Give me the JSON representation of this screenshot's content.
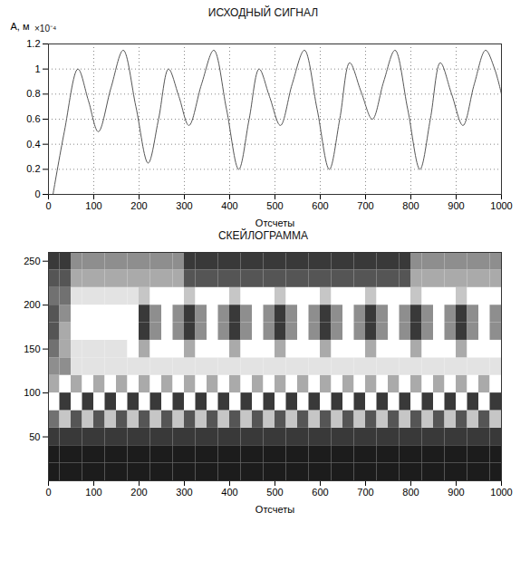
{
  "chart_data": [
    {
      "type": "line",
      "title": "ИСХОДНЫЙ СИГНАЛ",
      "x_label": "Отсчеты",
      "y_label": "A, м",
      "annotation": "×10⁻⁴",
      "x": [
        10,
        35,
        65,
        88,
        110,
        138,
        165,
        193,
        220,
        243,
        265,
        288,
        310,
        338,
        365,
        393,
        420,
        443,
        465,
        488,
        512,
        538,
        565,
        593,
        620,
        643,
        665,
        690,
        715,
        740,
        765,
        793,
        820,
        843,
        865,
        890,
        915,
        940,
        965,
        985,
        1000
      ],
      "values": [
        0.0,
        0.5,
        1.0,
        0.75,
        0.5,
        0.85,
        1.15,
        0.7,
        0.25,
        0.6,
        1.0,
        0.78,
        0.55,
        0.88,
        1.15,
        0.68,
        0.2,
        0.6,
        1.0,
        0.78,
        0.55,
        0.88,
        1.15,
        0.68,
        0.2,
        0.6,
        1.05,
        0.82,
        0.6,
        0.9,
        1.15,
        0.68,
        0.2,
        0.6,
        1.05,
        0.8,
        0.55,
        0.88,
        1.15,
        1.0,
        0.8
      ],
      "color": "#555555",
      "line_style": "solid",
      "grid": true,
      "xlim": [
        0,
        1000
      ],
      "xticks": [
        0,
        100,
        200,
        300,
        400,
        500,
        600,
        700,
        800,
        900,
        1000
      ],
      "ylim": [
        0,
        1.2
      ],
      "yticks": [
        0,
        0.2,
        0.4,
        0.6,
        0.8,
        1,
        1.2
      ]
    },
    {
      "type": "heatmap",
      "title": "СКЕЙЛОГРАММА",
      "x_label": "Отсчеты",
      "x_bins": [
        0,
        25,
        50,
        75,
        100,
        125,
        150,
        175,
        200,
        225,
        250,
        275,
        300,
        325,
        350,
        375,
        400,
        425,
        450,
        475,
        500,
        525,
        550,
        575,
        600,
        625,
        650,
        675,
        700,
        725,
        750,
        775,
        800,
        825,
        850,
        875,
        900,
        925,
        950,
        975,
        1000
      ],
      "y_bins": [
        0,
        20,
        40,
        60,
        80,
        100,
        120,
        140,
        160,
        180,
        200,
        220,
        240,
        260
      ],
      "zlim": [
        0,
        9
      ],
      "z": [
        [
          1,
          1,
          1,
          1,
          1,
          1,
          1,
          1,
          1,
          1,
          1,
          1,
          1,
          1,
          1,
          1,
          1,
          1,
          1,
          1,
          1,
          1,
          1,
          1,
          1,
          1,
          1,
          1,
          1,
          1,
          1,
          1,
          1,
          1,
          1,
          1,
          1,
          1,
          1,
          1
        ],
        [
          1,
          1,
          1,
          1,
          1,
          1,
          1,
          1,
          1,
          1,
          1,
          1,
          1,
          1,
          1,
          1,
          1,
          1,
          1,
          1,
          1,
          1,
          1,
          1,
          1,
          1,
          1,
          1,
          1,
          1,
          1,
          1,
          1,
          1,
          1,
          1,
          1,
          1,
          1,
          1
        ],
        [
          2,
          2,
          2,
          2,
          2,
          2,
          2,
          2,
          2,
          2,
          2,
          2,
          2,
          2,
          2,
          2,
          2,
          2,
          2,
          2,
          2,
          2,
          2,
          2,
          2,
          2,
          2,
          2,
          2,
          2,
          2,
          2,
          2,
          2,
          2,
          2,
          2,
          2,
          2,
          2
        ],
        [
          4,
          7,
          3,
          7,
          3,
          7,
          3,
          7,
          3,
          7,
          3,
          7,
          3,
          7,
          3,
          7,
          3,
          7,
          3,
          7,
          3,
          7,
          3,
          7,
          3,
          7,
          3,
          7,
          3,
          7,
          3,
          7,
          3,
          7,
          3,
          7,
          3,
          7,
          3,
          7
        ],
        [
          9,
          2,
          9,
          2,
          9,
          2,
          9,
          2,
          9,
          2,
          9,
          2,
          9,
          2,
          9,
          2,
          9,
          2,
          9,
          2,
          9,
          2,
          9,
          2,
          9,
          2,
          9,
          2,
          9,
          2,
          9,
          2,
          9,
          2,
          9,
          2,
          9,
          2,
          9,
          2
        ],
        [
          6,
          9,
          6,
          9,
          6,
          9,
          6,
          9,
          6,
          9,
          6,
          9,
          6,
          9,
          6,
          9,
          6,
          9,
          6,
          9,
          6,
          9,
          6,
          9,
          6,
          9,
          6,
          9,
          6,
          9,
          6,
          9,
          6,
          9,
          6,
          9,
          6,
          9,
          6,
          9
        ],
        [
          5,
          5,
          8,
          8,
          8,
          8,
          8,
          8,
          8,
          8,
          8,
          8,
          8,
          8,
          8,
          8,
          8,
          8,
          8,
          8,
          8,
          8,
          8,
          8,
          8,
          8,
          8,
          8,
          8,
          8,
          8,
          8,
          8,
          8,
          8,
          8,
          8,
          8,
          8,
          8
        ],
        [
          4,
          6,
          8,
          8,
          8,
          8,
          8,
          9,
          6,
          9,
          9,
          9,
          6,
          9,
          9,
          9,
          6,
          9,
          9,
          9,
          6,
          9,
          9,
          9,
          6,
          9,
          9,
          9,
          6,
          9,
          9,
          9,
          6,
          9,
          9,
          9,
          6,
          9,
          9,
          9
        ],
        [
          3,
          6,
          9,
          9,
          9,
          9,
          9,
          9,
          2,
          5,
          9,
          5,
          2,
          5,
          9,
          5,
          2,
          5,
          9,
          5,
          2,
          5,
          9,
          5,
          2,
          5,
          9,
          5,
          2,
          5,
          9,
          5,
          2,
          5,
          9,
          5,
          2,
          5,
          9,
          5
        ],
        [
          3,
          5,
          9,
          9,
          9,
          9,
          9,
          9,
          2,
          5,
          9,
          5,
          2,
          5,
          9,
          5,
          2,
          5,
          9,
          5,
          2,
          5,
          9,
          5,
          2,
          5,
          9,
          5,
          2,
          5,
          9,
          5,
          2,
          5,
          9,
          5,
          2,
          5,
          9,
          5
        ],
        [
          4,
          4,
          8,
          8,
          8,
          8,
          8,
          8,
          7,
          9,
          9,
          9,
          7,
          9,
          9,
          9,
          7,
          9,
          9,
          9,
          7,
          9,
          9,
          9,
          7,
          9,
          9,
          9,
          7,
          9,
          9,
          9,
          7,
          9,
          9,
          9,
          7,
          9,
          9,
          9
        ],
        [
          3,
          3,
          6,
          6,
          6,
          6,
          6,
          6,
          6,
          6,
          6,
          6,
          3,
          3,
          3,
          3,
          3,
          3,
          3,
          3,
          3,
          3,
          3,
          3,
          3,
          3,
          3,
          3,
          3,
          3,
          3,
          3,
          6,
          6,
          6,
          6,
          6,
          6,
          6,
          6
        ],
        [
          2,
          2,
          5,
          5,
          5,
          5,
          5,
          5,
          5,
          5,
          5,
          5,
          2,
          2,
          2,
          2,
          2,
          2,
          2,
          2,
          2,
          2,
          2,
          2,
          2,
          2,
          2,
          2,
          2,
          2,
          2,
          2,
          5,
          5,
          5,
          5,
          5,
          5,
          5,
          5
        ]
      ],
      "xlim": [
        0,
        1000
      ],
      "xticks": [
        0,
        100,
        200,
        300,
        400,
        500,
        600,
        700,
        800,
        900,
        1000
      ],
      "ylim": [
        0,
        260
      ],
      "yticks": [
        50,
        100,
        150,
        200,
        250
      ]
    }
  ]
}
